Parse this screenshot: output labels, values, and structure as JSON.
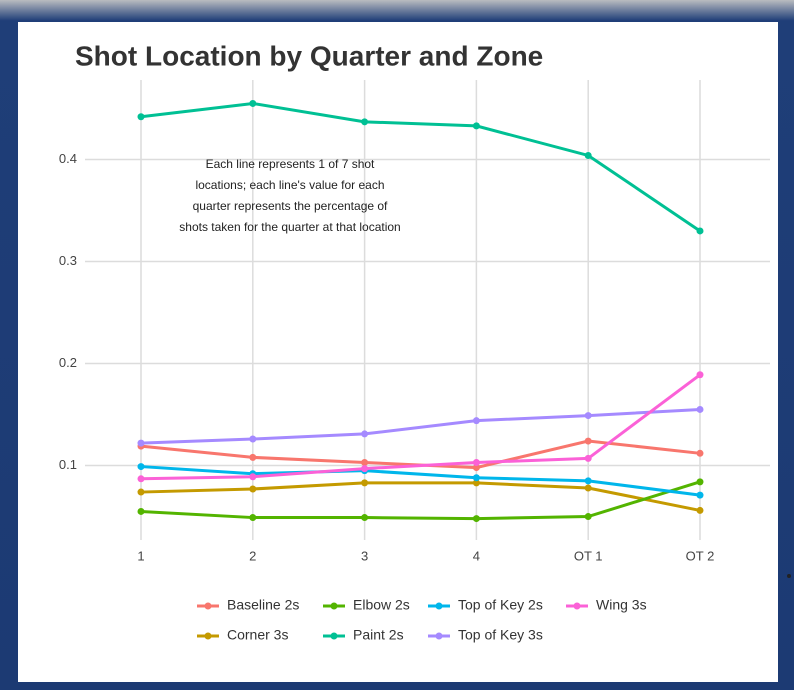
{
  "chart_data": {
    "type": "line",
    "title": "Shot Location by Quarter and Zone",
    "annotation": [
      "Each line represents 1 of 7 shot",
      "locations; each line's value for each",
      "quarter represents the percentage of",
      "shots taken for the quarter at that location"
    ],
    "categories": [
      "1",
      "2",
      "3",
      "4",
      "OT 1",
      "OT 2"
    ],
    "series": [
      {
        "name": "Baseline 2s",
        "color": "#F8766D",
        "values": [
          0.119,
          0.108,
          0.103,
          0.098,
          0.124,
          0.112
        ]
      },
      {
        "name": "Corner 3s",
        "color": "#C49A00",
        "values": [
          0.074,
          0.077,
          0.083,
          0.083,
          0.078,
          0.056
        ]
      },
      {
        "name": "Elbow 2s",
        "color": "#53B400",
        "values": [
          0.055,
          0.049,
          0.049,
          0.048,
          0.05,
          0.084
        ]
      },
      {
        "name": "Paint 2s",
        "color": "#00C094",
        "values": [
          0.442,
          0.455,
          0.437,
          0.433,
          0.404,
          0.33
        ]
      },
      {
        "name": "Top of Key 2s",
        "color": "#00B6EB",
        "values": [
          0.099,
          0.092,
          0.095,
          0.088,
          0.085,
          0.071
        ]
      },
      {
        "name": "Top of Key 3s",
        "color": "#A58AFF",
        "values": [
          0.122,
          0.126,
          0.131,
          0.144,
          0.149,
          0.155
        ]
      },
      {
        "name": "Wing 3s",
        "color": "#FB61D7",
        "values": [
          0.087,
          0.089,
          0.097,
          0.103,
          0.107,
          0.189
        ]
      }
    ],
    "ylim": [
      0.027,
      0.478
    ],
    "yticks": [
      0.1,
      0.2,
      0.3,
      0.4
    ],
    "grid": true
  }
}
